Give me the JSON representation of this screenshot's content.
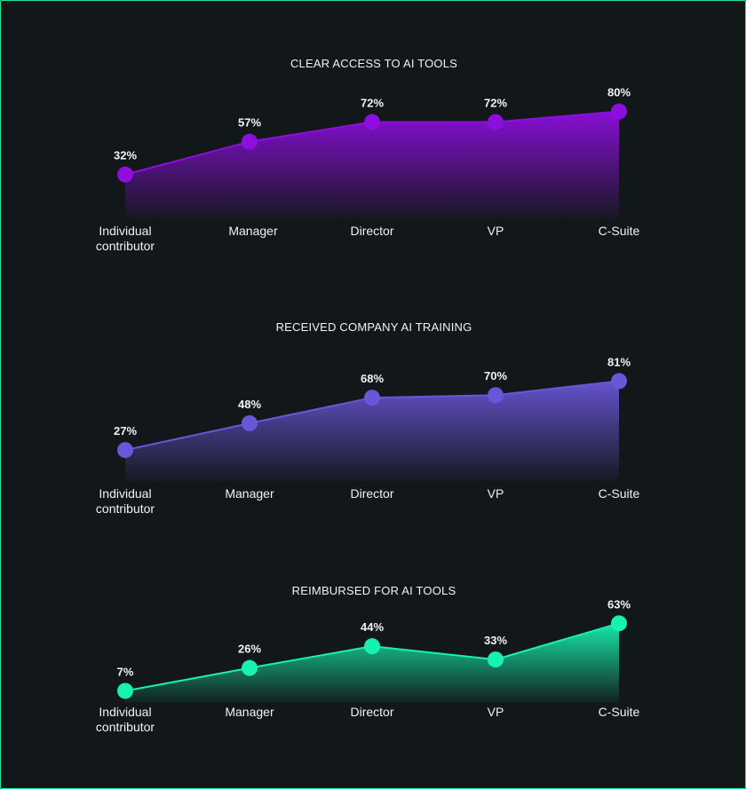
{
  "chart_data": [
    {
      "type": "area",
      "title": "CLEAR ACCESS TO AI TOOLS",
      "categories": [
        [
          "Individual",
          "contributor"
        ],
        [
          "Manager"
        ],
        [
          "Director"
        ],
        [
          "VP"
        ],
        [
          "C-Suite"
        ]
      ],
      "values": [
        32,
        57,
        72,
        72,
        80
      ],
      "labels": [
        "32%",
        "57%",
        "72%",
        "72%",
        "80%"
      ],
      "color": "#8e0ee0",
      "ylim": [
        0,
        100
      ],
      "grid": false
    },
    {
      "type": "area",
      "title": "RECEIVED COMPANY AI TRAINING",
      "categories": [
        [
          "Individual",
          "contributor"
        ],
        [
          "Manager"
        ],
        [
          "Director"
        ],
        [
          "VP"
        ],
        [
          "C-Suite"
        ]
      ],
      "values": [
        27,
        48,
        68,
        70,
        81
      ],
      "labels": [
        "27%",
        "48%",
        "68%",
        "70%",
        "81%"
      ],
      "color": "#6a56d8",
      "ylim": [
        0,
        100
      ],
      "grid": false
    },
    {
      "type": "area",
      "title": "REIMBURSED FOR AI TOOLS",
      "categories": [
        [
          "Individual",
          "contributor"
        ],
        [
          "Manager"
        ],
        [
          "Director"
        ],
        [
          "VP"
        ],
        [
          "C-Suite"
        ]
      ],
      "values": [
        7,
        26,
        44,
        33,
        63
      ],
      "labels": [
        "7%",
        "26%",
        "44%",
        "33%",
        "63%"
      ],
      "color": "#17f2b0",
      "ylim": [
        0,
        100
      ],
      "grid": false
    }
  ]
}
